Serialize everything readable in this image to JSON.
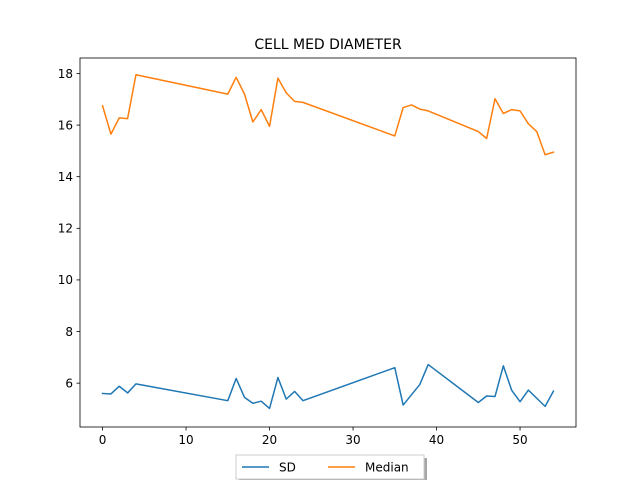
{
  "chart_data": {
    "type": "line",
    "title": "CELL MED DIAMETER",
    "xlabel": "",
    "ylabel": "",
    "xlim": [
      -2.7,
      56.7
    ],
    "ylim": [
      4.3,
      18.6
    ],
    "xticks": [
      0,
      10,
      20,
      30,
      40,
      50
    ],
    "yticks": [
      6,
      8,
      10,
      12,
      14,
      16,
      18
    ],
    "grid": false,
    "legend_position": "bottom-center",
    "series": [
      {
        "name": "SD",
        "color": "#1f77b4",
        "x": [
          0,
          1,
          2,
          3,
          4,
          15,
          16,
          17,
          18,
          19,
          20,
          21,
          22,
          23,
          24,
          35,
          36,
          38,
          39,
          45,
          46,
          47,
          48,
          49,
          50,
          51,
          53,
          54
        ],
        "y": [
          5.6,
          5.58,
          5.88,
          5.62,
          5.97,
          5.32,
          6.18,
          5.45,
          5.22,
          5.3,
          5.02,
          6.22,
          5.38,
          5.68,
          5.32,
          6.6,
          5.15,
          5.95,
          6.72,
          5.25,
          5.5,
          5.48,
          6.67,
          5.72,
          5.28,
          5.73,
          5.1,
          5.69
        ]
      },
      {
        "name": "Median",
        "color": "#ff7f0e",
        "x": [
          0,
          1,
          2,
          3,
          4,
          15,
          16,
          17,
          18,
          19,
          20,
          21,
          22,
          23,
          24,
          35,
          36,
          37,
          38,
          39,
          45,
          46,
          47,
          48,
          49,
          50,
          51,
          52,
          53,
          54
        ],
        "y": [
          16.75,
          15.65,
          16.28,
          16.25,
          17.95,
          17.2,
          17.85,
          17.2,
          16.12,
          16.6,
          15.95,
          17.82,
          17.25,
          16.92,
          16.88,
          15.58,
          16.68,
          16.78,
          16.62,
          16.55,
          15.75,
          15.48,
          17.02,
          16.45,
          16.6,
          16.55,
          16.05,
          15.75,
          14.85,
          14.95
        ]
      }
    ]
  }
}
